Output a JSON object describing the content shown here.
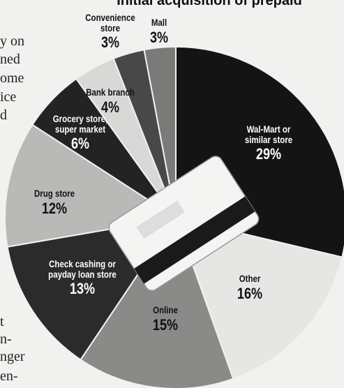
{
  "chart_data": {
    "type": "pie",
    "title": "Initial acquisition of prepaid",
    "categories": [
      "Wal-Mart or similar store",
      "Other",
      "Online",
      "Check cashing or payday loan store",
      "Drug store",
      "Grocery store, super market",
      "Bank branch",
      "Convenience store",
      "Mall"
    ],
    "values": [
      29,
      16,
      15,
      13,
      12,
      6,
      4,
      3,
      3
    ],
    "value_labels": [
      "29%",
      "16%",
      "15%",
      "13%",
      "12%",
      "6%",
      "4%",
      "3%",
      "3%"
    ],
    "colors": [
      "#141414",
      "#e6e6e4",
      "#8a8a88",
      "#2b2b2b",
      "#b9b9b7",
      "#232323",
      "#d8d8d6",
      "#484848",
      "#7a7a78"
    ]
  },
  "article_fragments": [
    "y on",
    "ned",
    "ome",
    "ice",
    "d",
    "t",
    "n-",
    "nger",
    "en-"
  ]
}
